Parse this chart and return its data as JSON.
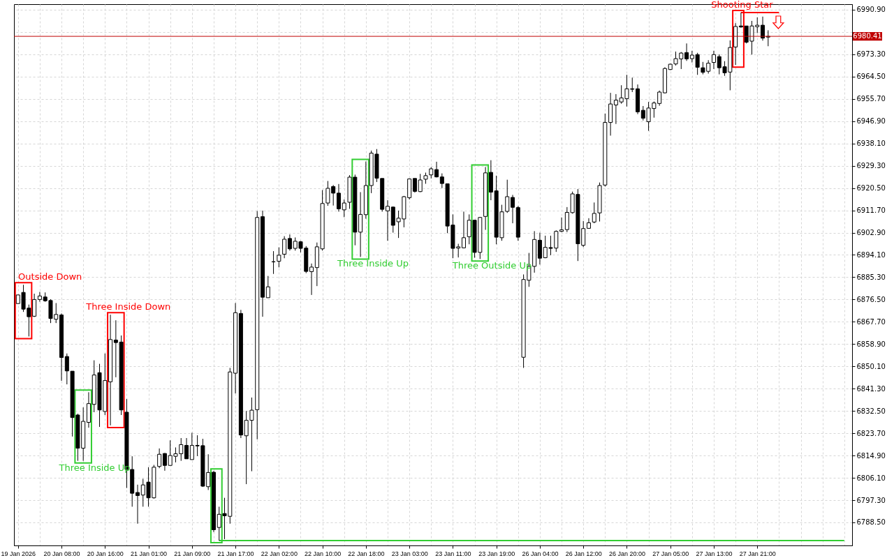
{
  "chart_data": {
    "type": "candlestick",
    "color": "#000000",
    "categories": [
      "19 Jan 2026",
      null,
      null,
      null,
      null,
      null,
      null,
      null,
      "20 Jan 08:00",
      null,
      null,
      null,
      null,
      null,
      null,
      null,
      "20 Jan 16:00",
      null,
      null,
      null,
      null,
      null,
      null,
      null,
      "21 Jan 01:00",
      null,
      null,
      null,
      null,
      null,
      null,
      null,
      "21 Jan 09:00",
      null,
      null,
      null,
      null,
      null,
      null,
      null,
      "21 Jan 17:00",
      null,
      null,
      null,
      null,
      null,
      null,
      null,
      "22 Jan 02:00",
      null,
      null,
      null,
      null,
      null,
      null,
      null,
      "22 Jan 10:00",
      null,
      null,
      null,
      null,
      null,
      null,
      null,
      "22 Jan 18:00",
      null,
      null,
      null,
      null,
      null,
      null,
      null,
      "23 Jan 03:00",
      null,
      null,
      null,
      null,
      null,
      null,
      null,
      "23 Jan 11:00",
      null,
      null,
      null,
      null,
      null,
      null,
      null,
      "23 Jan 19:00",
      null,
      null,
      null,
      null,
      null,
      null,
      null,
      "26 Jan 04:00",
      null,
      null,
      null,
      null,
      null,
      null,
      null,
      "26 Jan 12:00",
      null,
      null,
      null,
      null,
      null,
      null,
      null,
      "26 Jan 20:00",
      null,
      null,
      null,
      null,
      null,
      null,
      null,
      "27 Jan 05:00",
      null,
      null,
      null,
      null,
      null,
      null,
      null,
      "27 Jan 13:00",
      null,
      null,
      null,
      null,
      null,
      null,
      null,
      "27 Jan 21:00",
      null,
      null,
      null,
      null,
      null,
      null,
      null,
      null,
      null,
      null,
      null,
      null,
      null,
      null,
      null,
      null
    ],
    "ohlc": [
      [
        6874.9,
        6878.3,
        6874.9,
        6878.3
      ],
      [
        6879.3,
        6882.3,
        6871.6,
        6872.7
      ],
      [
        6873.1,
        6874.5,
        6861.9,
        6869.7
      ],
      [
        6869.9,
        6878.8,
        6869.6,
        6876.5
      ],
      [
        6876.5,
        6879.5,
        6875.6,
        6877.9
      ],
      [
        6877.5,
        6879.3,
        6875.6,
        6876.0
      ],
      [
        6876.1,
        6876.6,
        6867.2,
        6869.0
      ],
      [
        6868.7,
        6875.1,
        6867.2,
        6870.6
      ],
      [
        6870.4,
        6871.0,
        6844.4,
        6853.6
      ],
      [
        6854.0,
        6855.2,
        6843.0,
        6848.3
      ],
      [
        6848.2,
        6848.2,
        6822.4,
        6829.9
      ],
      [
        6830.9,
        6831.4,
        6812.8,
        6817.8
      ],
      [
        6817.8,
        6833.9,
        6812.8,
        6828.4
      ],
      [
        6828.0,
        6839.9,
        6825.9,
        6835.4
      ],
      [
        6835.1,
        6852.5,
        6832.0,
        6846.7
      ],
      [
        6847.6,
        6851.1,
        6826.2,
        6832.9
      ],
      [
        6832.3,
        6855.2,
        6830.9,
        6844.5
      ],
      [
        6844.0,
        6870.5,
        6826.8,
        6860.7
      ],
      [
        6860.5,
        6868.3,
        6845.8,
        6859.5
      ],
      [
        6859.7,
        6862.3,
        6830.9,
        6832.9
      ],
      [
        6832.0,
        6837.2,
        6802.1,
        6809.4
      ],
      [
        6809.4,
        6814.6,
        6794.7,
        6800.0
      ],
      [
        6800.3,
        6803.4,
        6788.0,
        6799.1
      ],
      [
        6799.3,
        6805.7,
        6794.7,
        6803.3
      ],
      [
        6804.4,
        6810.3,
        6794.7,
        6798.2
      ],
      [
        6798.2,
        6811.2,
        6797.9,
        6810.3
      ],
      [
        6810.6,
        6817.7,
        6809.9,
        6815.4
      ],
      [
        6815.7,
        6815.9,
        6808.9,
        6811.0
      ],
      [
        6811.0,
        6820.9,
        6811.0,
        6814.9
      ],
      [
        6814.6,
        6818.1,
        6812.2,
        6815.6
      ],
      [
        6815.6,
        6821.8,
        6812.8,
        6819.2
      ],
      [
        6818.9,
        6821.8,
        6813.6,
        6813.6
      ],
      [
        6813.3,
        6823.9,
        6813.3,
        6818.9
      ],
      [
        6818.9,
        6822.9,
        6814.7,
        6818.7
      ],
      [
        6818.8,
        6821.5,
        6802.5,
        6802.8
      ],
      [
        6802.6,
        6815.4,
        6801.3,
        6808.2
      ],
      [
        6808.3,
        6808.8,
        6784.7,
        6785.6
      ],
      [
        6786.5,
        6794.7,
        6781.3,
        6791.7
      ],
      [
        6792.0,
        6798.2,
        6781.9,
        6791.1
      ],
      [
        6790.9,
        6849.5,
        6788.0,
        6847.9
      ],
      [
        6847.4,
        6875.1,
        6839.4,
        6871.3
      ],
      [
        6871.0,
        6872.4,
        6821.8,
        6823.0
      ],
      [
        6822.7,
        6832.5,
        6803.6,
        6828.8
      ],
      [
        6828.8,
        6837.8,
        6808.7,
        6832.8
      ],
      [
        6833.0,
        6911.4,
        6821.3,
        6908.9
      ],
      [
        6909.2,
        6911.6,
        6869.7,
        6877.4
      ],
      [
        6877.2,
        6885.8,
        6877.2,
        6881.5
      ],
      [
        6891.4,
        6895.6,
        6886.6,
        6891.4
      ],
      [
        6891.6,
        6897.1,
        6889.2,
        6894.0
      ],
      [
        6894.4,
        6901.5,
        6892.8,
        6900.3
      ],
      [
        6900.6,
        6902.2,
        6895.8,
        6896.5
      ],
      [
        6896.7,
        6901.0,
        6895.8,
        6899.5
      ],
      [
        6899.3,
        6899.6,
        6895.1,
        6896.7
      ],
      [
        6896.8,
        6897.6,
        6886.9,
        6887.6
      ],
      [
        6887.5,
        6890.7,
        6878.3,
        6889.3
      ],
      [
        6889.1,
        6899.0,
        6881.8,
        6897.3
      ],
      [
        6896.5,
        6919.7,
        6895.8,
        6914.4
      ],
      [
        6914.6,
        6923.3,
        6913.5,
        6920.4
      ],
      [
        6921.1,
        6921.7,
        6913.6,
        6918.5
      ],
      [
        6918.5,
        6922.1,
        6911.2,
        6912.3
      ],
      [
        6911.9,
        6916.0,
        6909.0,
        6914.6
      ],
      [
        6914.9,
        6925.6,
        6912.3,
        6924.8
      ],
      [
        6924.8,
        6925.8,
        6897.9,
        6903.1
      ],
      [
        6903.1,
        6918.9,
        6893.3,
        6910.1
      ],
      [
        6910.0,
        6931.0,
        6908.4,
        6921.5
      ],
      [
        6921.5,
        6935.3,
        6918.5,
        6934.3
      ],
      [
        6933.9,
        6935.9,
        6922.9,
        6924.4
      ],
      [
        6924.3,
        6924.3,
        6911.2,
        6912.1
      ],
      [
        6911.5,
        6915.7,
        6899.7,
        6913.3
      ],
      [
        6913.0,
        6913.2,
        6902.9,
        6905.8
      ],
      [
        6907.2,
        6911.6,
        6900.8,
        6908.6
      ],
      [
        6908.3,
        6917.4,
        6905.0,
        6917.1
      ],
      [
        6916.7,
        6924.3,
        6916.0,
        6924.1
      ],
      [
        6924.3,
        6924.3,
        6918.7,
        6919.2
      ],
      [
        6919.1,
        6926.1,
        6918.9,
        6923.7
      ],
      [
        6924.0,
        6926.6,
        6922.2,
        6925.4
      ],
      [
        6925.7,
        6928.8,
        6924.3,
        6928.1
      ],
      [
        6927.8,
        6930.9,
        6924.7,
        6924.9
      ],
      [
        6924.9,
        6926.3,
        6920.5,
        6922.3
      ],
      [
        6922.2,
        6922.3,
        6902.7,
        6905.5
      ],
      [
        6905.9,
        6910.1,
        6892.8,
        6896.7
      ],
      [
        6896.8,
        6898.5,
        6893.1,
        6897.3
      ],
      [
        6896.9,
        6911.2,
        6896.7,
        6900.9
      ],
      [
        6901.3,
        6910.1,
        6898.3,
        6907.8
      ],
      [
        6907.8,
        6908.0,
        6893.0,
        6895.1
      ],
      [
        6895.1,
        6909.1,
        6892.5,
        6908.9
      ],
      [
        6909.3,
        6928.8,
        6904.0,
        6926.5
      ],
      [
        6926.7,
        6931.5,
        6915.7,
        6918.9
      ],
      [
        6919.4,
        6925.4,
        6898.3,
        6901.1
      ],
      [
        6900.9,
        6913.9,
        6899.7,
        6911.1
      ],
      [
        6911.3,
        6923.8,
        6910.7,
        6917.1
      ],
      [
        6916.8,
        6917.8,
        6906.6,
        6912.9
      ],
      [
        6912.8,
        6913.4,
        6899.7,
        6901.1
      ],
      [
        6853.7,
        6886.4,
        6849.5,
        6884.4
      ],
      [
        6884.1,
        6894.9,
        6881.5,
        6889.6
      ],
      [
        6889.6,
        6903.5,
        6887.1,
        6900.2
      ],
      [
        6899.9,
        6902.9,
        6890.3,
        6892.8
      ],
      [
        6893.0,
        6901.7,
        6892.8,
        6897.1
      ],
      [
        6897.0,
        6901.7,
        6894.0,
        6896.7
      ],
      [
        6896.8,
        6903.8,
        6895.3,
        6903.4
      ],
      [
        6903.4,
        6908.9,
        6903.1,
        6904.0
      ],
      [
        6904.1,
        6913.0,
        6903.1,
        6910.9
      ],
      [
        6910.8,
        6919.1,
        6910.4,
        6918.2
      ],
      [
        6918.0,
        6920.1,
        6891.7,
        6898.5
      ],
      [
        6897.9,
        6907.5,
        6897.2,
        6904.5
      ],
      [
        6904.6,
        6908.6,
        6904.5,
        6906.8
      ],
      [
        6907.1,
        6914.8,
        6906.6,
        6910.5
      ],
      [
        6910.7,
        6922.7,
        6907.3,
        6921.5
      ],
      [
        6921.7,
        6949.9,
        6921.1,
        6946.4
      ],
      [
        6946.4,
        6958.1,
        6941.2,
        6953.7
      ],
      [
        6953.3,
        6957.6,
        6945.8,
        6955.2
      ],
      [
        6954.5,
        6961.1,
        6953.8,
        6956.1
      ],
      [
        6955.8,
        6965.2,
        6952.7,
        6959.7
      ],
      [
        6959.7,
        6964.1,
        6958.4,
        6959.5
      ],
      [
        6959.7,
        6961.4,
        6949.7,
        6950.6
      ],
      [
        6951.2,
        6952.9,
        6947.2,
        6948.1
      ],
      [
        6946.7,
        6954.5,
        6943.1,
        6952.1
      ],
      [
        6951.9,
        6954.7,
        6948.3,
        6954.1
      ],
      [
        6953.9,
        6959.0,
        6953.0,
        6958.4
      ],
      [
        6958.1,
        6968.2,
        6957.9,
        6967.7
      ],
      [
        6967.3,
        6969.6,
        6967.1,
        6969.4
      ],
      [
        6969.5,
        6974.4,
        6968.9,
        6971.6
      ],
      [
        6971.5,
        6974.2,
        6967.5,
        6973.8
      ],
      [
        6974.0,
        6977.6,
        6970.7,
        6971.5
      ],
      [
        6971.6,
        6974.7,
        6970.1,
        6973.0
      ],
      [
        6973.2,
        6973.9,
        6965.2,
        6968.2
      ],
      [
        6968.0,
        6970.3,
        6965.4,
        6966.2
      ],
      [
        6966.6,
        6971.0,
        6965.7,
        6969.8
      ],
      [
        6970.1,
        6974.7,
        6967.5,
        6973.2
      ],
      [
        6972.4,
        6973.3,
        6965.4,
        6968.0
      ],
      [
        6968.4,
        6970.6,
        6964.8,
        6966.0
      ],
      [
        6966.3,
        6978.8,
        6959.1,
        6976.0
      ],
      [
        6976.2,
        6985.6,
        6969.1,
        6984.3
      ],
      [
        6984.5,
        6989.8,
        6983.8,
        6984.1
      ],
      [
        6984.5,
        6984.5,
        6977.6,
        6978.1
      ],
      [
        6978.5,
        6986.5,
        6973.2,
        6984.5
      ],
      [
        6984.2,
        6987.9,
        6981.7,
        6984.8
      ],
      [
        6984.8,
        6988.2,
        6978.7,
        6979.7
      ],
      [
        6980.1,
        6982.8,
        6976.5,
        6980.41
      ],
      null,
      null,
      null,
      null,
      null,
      null,
      null,
      null,
      null,
      null,
      null,
      null,
      null,
      null
    ],
    "series": [
      {
        "type": "line",
        "color": "#32cd32",
        "values": [
          null,
          null,
          null,
          null,
          null,
          null,
          null,
          null,
          null,
          null,
          null,
          null,
          null,
          null,
          null,
          null,
          null,
          null,
          null,
          null,
          null,
          null,
          null,
          null,
          null,
          null,
          null,
          null,
          null,
          null,
          null,
          null,
          null,
          null,
          null,
          null,
          null,
          6781.3,
          6781.3,
          6781.3,
          6781.3,
          6781.3,
          6781.3,
          6781.3,
          6781.3,
          6781.3,
          6781.3,
          6781.3,
          6781.3,
          6781.3,
          6781.3,
          6781.3,
          6781.3,
          6781.3,
          6781.3,
          6781.3,
          6781.3,
          6781.3,
          6781.3,
          6781.3,
          6781.3,
          6781.3,
          6781.3,
          6781.3,
          6781.3,
          6781.3,
          6781.3,
          6781.3,
          6781.3,
          6781.3,
          6781.3,
          6781.3,
          6781.3,
          6781.3,
          6781.3,
          6781.3,
          6781.3,
          6781.3,
          6781.3,
          6781.3,
          6781.3,
          6781.3,
          6781.3,
          6781.3,
          6781.3,
          6781.3,
          6781.3,
          6781.3,
          6781.3,
          6781.3,
          6781.3,
          6781.3,
          6781.3,
          6781.3,
          6781.3,
          6781.3,
          6781.3,
          6781.3,
          6781.3,
          6781.3,
          6781.3,
          6781.3,
          6781.3,
          6781.3,
          6781.3,
          6781.3,
          6781.3,
          6781.3,
          6781.3,
          6781.3,
          6781.3,
          6781.3,
          6781.3,
          6781.3,
          6781.3,
          6781.3,
          6781.3,
          6781.3,
          6781.3,
          6781.3,
          6781.3,
          6781.3,
          6781.3,
          6781.3,
          6781.3,
          6781.3,
          6781.3,
          6781.3,
          6781.3,
          6781.3,
          6781.3,
          6781.3,
          6781.3,
          6781.3,
          6781.3,
          6781.3,
          6781.3,
          6781.3,
          6781.3,
          6781.3,
          6781.3,
          6781.3,
          6781.3,
          6781.3,
          6781.3,
          6781.3,
          6781.3,
          6781.3,
          6781.3,
          6781.3,
          6781.3,
          6781.3,
          6781.3
        ]
      },
      {
        "type": "line",
        "color": "#ff0000",
        "values": [
          null,
          null,
          null,
          null,
          null,
          null,
          null,
          null,
          null,
          null,
          null,
          null,
          null,
          null,
          null,
          null,
          null,
          null,
          null,
          null,
          null,
          null,
          null,
          null,
          null,
          null,
          null,
          null,
          null,
          null,
          null,
          null,
          null,
          null,
          null,
          null,
          null,
          null,
          null,
          null,
          null,
          null,
          null,
          null,
          null,
          null,
          null,
          null,
          null,
          null,
          null,
          null,
          null,
          null,
          null,
          null,
          null,
          null,
          null,
          null,
          null,
          null,
          null,
          null,
          null,
          null,
          null,
          null,
          null,
          null,
          null,
          null,
          null,
          null,
          null,
          null,
          null,
          null,
          null,
          null,
          null,
          null,
          null,
          null,
          null,
          null,
          null,
          null,
          null,
          null,
          null,
          null,
          null,
          null,
          null,
          null,
          null,
          null,
          null,
          null,
          null,
          null,
          null,
          null,
          null,
          null,
          null,
          null,
          null,
          null,
          null,
          null,
          null,
          null,
          null,
          null,
          null,
          null,
          null,
          null,
          null,
          null,
          null,
          null,
          null,
          null,
          null,
          null,
          null,
          null,
          null,
          null,
          null,
          6989.8,
          6989.8,
          6989.8,
          6989.8,
          6989.8,
          6989.8,
          6989.8,
          6989.8,
          null,
          null,
          null,
          null,
          null,
          null,
          null,
          null,
          null,
          null,
          null,
          null
        ]
      }
    ],
    "annotations": [
      "Outside Down",
      "Three Inside Up",
      "Three Inside Down",
      "Three Inside Up",
      "Three Outside Up",
      "Shooting Star"
    ],
    "ref_lines": [
      {
        "axis": "y",
        "value": 6980.41,
        "label": "6980.41",
        "color": "#c00000"
      }
    ],
    "ylim": [
      6779.4,
      6993.1
    ],
    "yticks": [
      {
        "value": 6788.5,
        "label": "6788.50"
      },
      {
        "value": 6797.3,
        "label": "6797.30"
      },
      {
        "value": 6806.1,
        "label": "6806.10"
      },
      {
        "value": 6814.9,
        "label": "6814.90"
      },
      {
        "value": 6823.7,
        "label": "6823.70"
      },
      {
        "value": 6832.5,
        "label": "6832.50"
      },
      {
        "value": 6841.3,
        "label": "6841.30"
      },
      {
        "value": 6850.1,
        "label": "6850.10"
      },
      {
        "value": 6858.9,
        "label": "6858.90"
      },
      {
        "value": 6867.7,
        "label": "6867.70"
      },
      {
        "value": 6876.5,
        "label": "6876.50"
      },
      {
        "value": 6885.3,
        "label": "6885.30"
      },
      {
        "value": 6894.1,
        "label": "6894.10"
      },
      {
        "value": 6902.9,
        "label": "6902.90"
      },
      {
        "value": 6911.7,
        "label": "6911.70"
      },
      {
        "value": 6920.5,
        "label": "6920.50"
      },
      {
        "value": 6929.3,
        "label": "6929.30"
      },
      {
        "value": 6938.1,
        "label": "6938.10"
      },
      {
        "value": 6946.9,
        "label": "6946.90"
      },
      {
        "value": 6955.7,
        "label": "6955.70"
      },
      {
        "value": 6964.5,
        "label": "6964.50"
      },
      {
        "value": 6973.3,
        "label": "6973.30"
      },
      {
        "value": 6982.1,
        "label": null
      },
      {
        "value": 6990.9,
        "label": "6990.90"
      }
    ],
    "grid": true
  }
}
